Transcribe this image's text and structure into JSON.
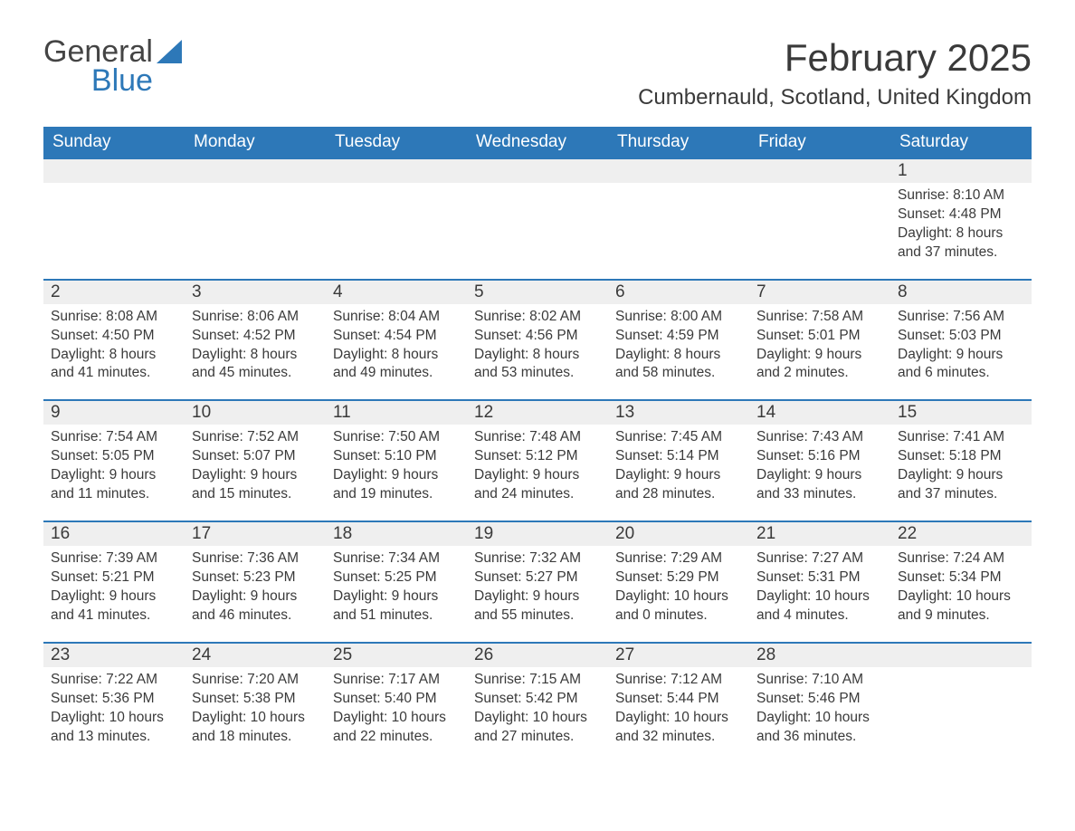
{
  "logo": {
    "word1": "General",
    "word2": "Blue"
  },
  "title": "February 2025",
  "location": "Cumbernauld, Scotland, United Kingdom",
  "colors": {
    "header_bg": "#2d78b8",
    "header_fg": "#ffffff",
    "daynum_bg": "#efefef",
    "text": "#3a3a3a",
    "row_border": "#2d78b8",
    "page_bg": "#ffffff"
  },
  "fonts": {
    "title_size_pt": 32,
    "location_size_pt": 18,
    "header_size_pt": 14,
    "daynum_size_pt": 14,
    "body_size_pt": 11.5
  },
  "days_of_week": [
    "Sunday",
    "Monday",
    "Tuesday",
    "Wednesday",
    "Thursday",
    "Friday",
    "Saturday"
  ],
  "weeks": [
    [
      null,
      null,
      null,
      null,
      null,
      null,
      {
        "n": "1",
        "sunrise": "Sunrise: 8:10 AM",
        "sunset": "Sunset: 4:48 PM",
        "dl1": "Daylight: 8 hours",
        "dl2": "and 37 minutes."
      }
    ],
    [
      {
        "n": "2",
        "sunrise": "Sunrise: 8:08 AM",
        "sunset": "Sunset: 4:50 PM",
        "dl1": "Daylight: 8 hours",
        "dl2": "and 41 minutes."
      },
      {
        "n": "3",
        "sunrise": "Sunrise: 8:06 AM",
        "sunset": "Sunset: 4:52 PM",
        "dl1": "Daylight: 8 hours",
        "dl2": "and 45 minutes."
      },
      {
        "n": "4",
        "sunrise": "Sunrise: 8:04 AM",
        "sunset": "Sunset: 4:54 PM",
        "dl1": "Daylight: 8 hours",
        "dl2": "and 49 minutes."
      },
      {
        "n": "5",
        "sunrise": "Sunrise: 8:02 AM",
        "sunset": "Sunset: 4:56 PM",
        "dl1": "Daylight: 8 hours",
        "dl2": "and 53 minutes."
      },
      {
        "n": "6",
        "sunrise": "Sunrise: 8:00 AM",
        "sunset": "Sunset: 4:59 PM",
        "dl1": "Daylight: 8 hours",
        "dl2": "and 58 minutes."
      },
      {
        "n": "7",
        "sunrise": "Sunrise: 7:58 AM",
        "sunset": "Sunset: 5:01 PM",
        "dl1": "Daylight: 9 hours",
        "dl2": "and 2 minutes."
      },
      {
        "n": "8",
        "sunrise": "Sunrise: 7:56 AM",
        "sunset": "Sunset: 5:03 PM",
        "dl1": "Daylight: 9 hours",
        "dl2": "and 6 minutes."
      }
    ],
    [
      {
        "n": "9",
        "sunrise": "Sunrise: 7:54 AM",
        "sunset": "Sunset: 5:05 PM",
        "dl1": "Daylight: 9 hours",
        "dl2": "and 11 minutes."
      },
      {
        "n": "10",
        "sunrise": "Sunrise: 7:52 AM",
        "sunset": "Sunset: 5:07 PM",
        "dl1": "Daylight: 9 hours",
        "dl2": "and 15 minutes."
      },
      {
        "n": "11",
        "sunrise": "Sunrise: 7:50 AM",
        "sunset": "Sunset: 5:10 PM",
        "dl1": "Daylight: 9 hours",
        "dl2": "and 19 minutes."
      },
      {
        "n": "12",
        "sunrise": "Sunrise: 7:48 AM",
        "sunset": "Sunset: 5:12 PM",
        "dl1": "Daylight: 9 hours",
        "dl2": "and 24 minutes."
      },
      {
        "n": "13",
        "sunrise": "Sunrise: 7:45 AM",
        "sunset": "Sunset: 5:14 PM",
        "dl1": "Daylight: 9 hours",
        "dl2": "and 28 minutes."
      },
      {
        "n": "14",
        "sunrise": "Sunrise: 7:43 AM",
        "sunset": "Sunset: 5:16 PM",
        "dl1": "Daylight: 9 hours",
        "dl2": "and 33 minutes."
      },
      {
        "n": "15",
        "sunrise": "Sunrise: 7:41 AM",
        "sunset": "Sunset: 5:18 PM",
        "dl1": "Daylight: 9 hours",
        "dl2": "and 37 minutes."
      }
    ],
    [
      {
        "n": "16",
        "sunrise": "Sunrise: 7:39 AM",
        "sunset": "Sunset: 5:21 PM",
        "dl1": "Daylight: 9 hours",
        "dl2": "and 41 minutes."
      },
      {
        "n": "17",
        "sunrise": "Sunrise: 7:36 AM",
        "sunset": "Sunset: 5:23 PM",
        "dl1": "Daylight: 9 hours",
        "dl2": "and 46 minutes."
      },
      {
        "n": "18",
        "sunrise": "Sunrise: 7:34 AM",
        "sunset": "Sunset: 5:25 PM",
        "dl1": "Daylight: 9 hours",
        "dl2": "and 51 minutes."
      },
      {
        "n": "19",
        "sunrise": "Sunrise: 7:32 AM",
        "sunset": "Sunset: 5:27 PM",
        "dl1": "Daylight: 9 hours",
        "dl2": "and 55 minutes."
      },
      {
        "n": "20",
        "sunrise": "Sunrise: 7:29 AM",
        "sunset": "Sunset: 5:29 PM",
        "dl1": "Daylight: 10 hours",
        "dl2": "and 0 minutes."
      },
      {
        "n": "21",
        "sunrise": "Sunrise: 7:27 AM",
        "sunset": "Sunset: 5:31 PM",
        "dl1": "Daylight: 10 hours",
        "dl2": "and 4 minutes."
      },
      {
        "n": "22",
        "sunrise": "Sunrise: 7:24 AM",
        "sunset": "Sunset: 5:34 PM",
        "dl1": "Daylight: 10 hours",
        "dl2": "and 9 minutes."
      }
    ],
    [
      {
        "n": "23",
        "sunrise": "Sunrise: 7:22 AM",
        "sunset": "Sunset: 5:36 PM",
        "dl1": "Daylight: 10 hours",
        "dl2": "and 13 minutes."
      },
      {
        "n": "24",
        "sunrise": "Sunrise: 7:20 AM",
        "sunset": "Sunset: 5:38 PM",
        "dl1": "Daylight: 10 hours",
        "dl2": "and 18 minutes."
      },
      {
        "n": "25",
        "sunrise": "Sunrise: 7:17 AM",
        "sunset": "Sunset: 5:40 PM",
        "dl1": "Daylight: 10 hours",
        "dl2": "and 22 minutes."
      },
      {
        "n": "26",
        "sunrise": "Sunrise: 7:15 AM",
        "sunset": "Sunset: 5:42 PM",
        "dl1": "Daylight: 10 hours",
        "dl2": "and 27 minutes."
      },
      {
        "n": "27",
        "sunrise": "Sunrise: 7:12 AM",
        "sunset": "Sunset: 5:44 PM",
        "dl1": "Daylight: 10 hours",
        "dl2": "and 32 minutes."
      },
      {
        "n": "28",
        "sunrise": "Sunrise: 7:10 AM",
        "sunset": "Sunset: 5:46 PM",
        "dl1": "Daylight: 10 hours",
        "dl2": "and 36 minutes."
      },
      null
    ]
  ]
}
